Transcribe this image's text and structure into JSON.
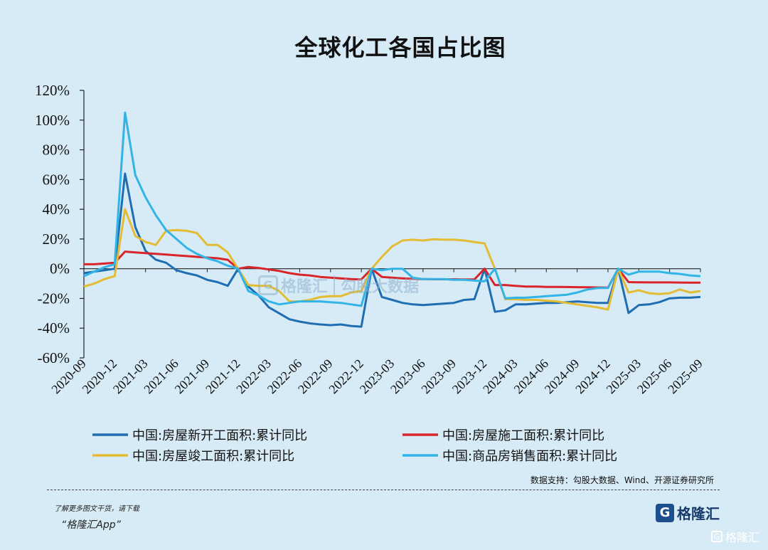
{
  "page": {
    "source_note": "数据支持：勾股大数据、Wind、开源证券研究所",
    "promo_line": "了解更多图文干货，请下载",
    "promo_app": "“格隆汇App”",
    "brand_mark": "G",
    "brand_name": "格隆汇",
    "watermark_name": "格隆汇",
    "watermark_site": "勾股大数据",
    "corner_badge": "格隆汇"
  },
  "colors": {
    "background": "#d7ebf6",
    "new_starts": "#1f6db3",
    "under_construction": "#d9252a",
    "completed": "#e3bc34",
    "sales": "#33b4e6"
  },
  "chart_data": {
    "type": "line",
    "title": "全球化工各国占比图",
    "xlabel": "",
    "ylabel": "",
    "ylim": [
      -60,
      120
    ],
    "yticks": [
      120,
      100,
      80,
      60,
      40,
      20,
      0,
      -20,
      -40,
      -60
    ],
    "ytick_labels": [
      "120%",
      "100%",
      "80%",
      "60%",
      "40%",
      "20%",
      "0%",
      "-20%",
      "-40%",
      "-60%"
    ],
    "x_tick_labels": [
      "2020-09",
      "2020-12",
      "2021-03",
      "2021-06",
      "2021-09",
      "2021-12",
      "2022-03",
      "2022-06",
      "2022-09",
      "2022-12",
      "2023-03",
      "2023-06",
      "2023-09",
      "2023-12",
      "2024-03",
      "2024-06",
      "2024-09",
      "2024-12",
      "2025-03",
      "2025-06",
      "2025-09"
    ],
    "grid": false,
    "legend_position": "bottom",
    "x_start": "2020-09",
    "series": [
      {
        "name": "中国:房屋新开工面积:累计同比",
        "color": "#1f6db3",
        "values": [
          -3,
          -2,
          -1,
          0,
          64,
          28,
          12,
          6,
          4,
          -1,
          -3,
          -4.5,
          -7.5,
          -9,
          -11.5,
          0,
          -12,
          -18,
          -26,
          -30,
          -34,
          -35.6,
          -36.8,
          -37.5,
          -38,
          -37.5,
          -38.5,
          -39,
          0,
          -19,
          -21,
          -23,
          -24,
          -24.5,
          -24,
          -23.5,
          -23,
          -21,
          -20.5,
          0,
          -29,
          -28,
          -24,
          -24,
          -23.5,
          -23,
          -23,
          -22.5,
          -22,
          -22.5,
          -23,
          -23,
          0,
          -29.8,
          -24.5,
          -24,
          -22.5,
          -20,
          -19.5,
          -19.5,
          -19
        ]
      },
      {
        "name": "中国:房屋施工面积:累计同比",
        "color": "#d9252a",
        "values": [
          3,
          3,
          3.5,
          4,
          11.5,
          11,
          10.5,
          10,
          9.5,
          9,
          8.5,
          8,
          7.5,
          7,
          6,
          0,
          1.2,
          0.5,
          -0.5,
          -1.5,
          -3,
          -4,
          -4.5,
          -5.5,
          -6,
          -6.5,
          -7,
          -7.2,
          0,
          -5.5,
          -6,
          -6.5,
          -6.8,
          -7,
          -7.1,
          -7.1,
          -7.1,
          -7.2,
          -7.2,
          0,
          -11,
          -11,
          -11.5,
          -12,
          -12,
          -12.2,
          -12.2,
          -12.3,
          -12.4,
          -12.5,
          -12.6,
          -12.7,
          0,
          -9,
          -9.1,
          -9.2,
          -9.2,
          -9.2,
          -9.3,
          -9.4,
          -9.4
        ]
      },
      {
        "name": "中国:房屋竣工面积:累计同比",
        "color": "#e3bc34",
        "values": [
          -12,
          -10,
          -7,
          -5,
          40,
          22,
          18,
          16,
          25.5,
          26,
          25.5,
          24,
          16,
          16,
          11,
          0,
          -11,
          -11.5,
          -11.5,
          -15,
          -22,
          -22,
          -21,
          -19,
          -18.5,
          -18.5,
          -16,
          -15,
          0,
          8,
          15,
          19,
          19.5,
          19,
          19.8,
          19.5,
          19.5,
          19,
          18,
          17,
          0,
          -20.5,
          -20.5,
          -21,
          -21,
          -21.5,
          -22,
          -23,
          -24,
          -25,
          -26,
          -27.5,
          0,
          -16,
          -14.5,
          -16.5,
          -17,
          -16.5,
          -14,
          -16,
          -15
        ]
      },
      {
        "name": "中国:商品房销售面积:累计同比",
        "color": "#33b4e6",
        "values": [
          -5,
          -2,
          1,
          3,
          105,
          63,
          48,
          36,
          26,
          20,
          14,
          10,
          7,
          5,
          2,
          0,
          -15,
          -18,
          -22,
          -24,
          -23,
          -22,
          -22,
          -22,
          -22.5,
          -23,
          -24,
          -25,
          0,
          -1,
          0,
          0,
          -6,
          -7,
          -7,
          -7,
          -7.5,
          -7.5,
          -8,
          -8.5,
          0,
          -20,
          -19.5,
          -19.5,
          -19,
          -18.5,
          -18,
          -17.5,
          -16,
          -14,
          -13,
          -13,
          0,
          -4,
          -2,
          -2,
          -2,
          -3,
          -3.5,
          -4.5,
          -5
        ]
      }
    ]
  },
  "legend": [
    {
      "label": "中国:房屋新开工面积:累计同比",
      "color": "#1f6db3"
    },
    {
      "label": "中国:房屋施工面积:累计同比",
      "color": "#d9252a"
    },
    {
      "label": "中国:房屋竣工面积:累计同比",
      "color": "#e3bc34"
    },
    {
      "label": "中国:商品房销售面积:累计同比",
      "color": "#33b4e6"
    }
  ]
}
